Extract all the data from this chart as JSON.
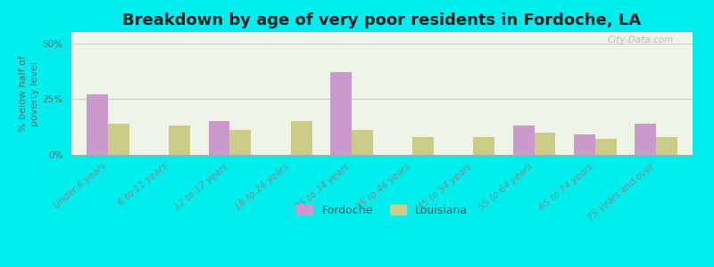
{
  "title": "Breakdown by age of very poor residents in Fordoche, LA",
  "ylabel": "% below half of\npoverty level",
  "categories": [
    "Under 6 years",
    "6 to 11 years",
    "12 to 17 years",
    "18 to 24 years",
    "25 to 34 years",
    "35 to 44 years",
    "45 to 54 years",
    "55 to 64 years",
    "65 to 74 years",
    "75 years and over"
  ],
  "fordoche_values": [
    27,
    0,
    15,
    0,
    37,
    0,
    0,
    13,
    9,
    14
  ],
  "louisiana_values": [
    14,
    13,
    11,
    15,
    11,
    8,
    8,
    10,
    7,
    8
  ],
  "fordoche_color": "#cc99cc",
  "louisiana_color": "#cccc88",
  "ylim": [
    0,
    55
  ],
  "yticks": [
    0,
    25,
    50
  ],
  "ytick_labels": [
    "0%",
    "25%",
    "50%"
  ],
  "fig_facecolor": "#00eeee",
  "plot_facecolor": "#eef5e8",
  "bar_width": 0.35,
  "title_fontsize": 13,
  "axis_fontsize": 8,
  "tick_fontsize": 7.5,
  "legend_labels": [
    "Fordoche",
    "Louisiana"
  ],
  "watermark": "City-Data.com"
}
